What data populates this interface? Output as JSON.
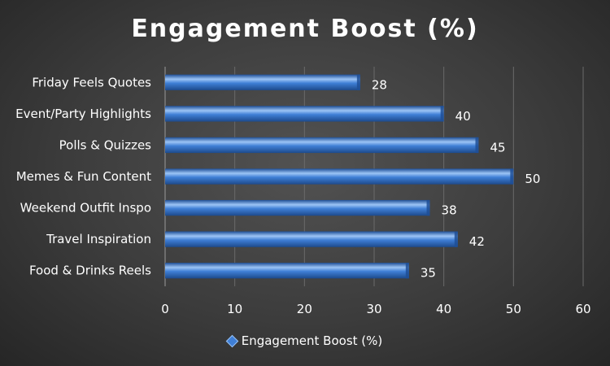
{
  "chart_data": {
    "type": "bar",
    "orientation": "horizontal",
    "title": "Engagement Boost (%)",
    "categories": [
      "Friday Feels Quotes",
      "Event/Party Highlights",
      "Polls & Quizzes",
      "Memes & Fun Content",
      "Weekend Outfit Inspo",
      "Travel Inspiration",
      "Food & Drinks Reels"
    ],
    "series": [
      {
        "name": "Engagement Boost (%)",
        "values": [
          28,
          40,
          45,
          50,
          38,
          42,
          35
        ]
      }
    ],
    "xlim": [
      0,
      60
    ],
    "xticks": [
      0,
      10,
      20,
      30,
      40,
      50,
      60
    ],
    "xlabel": "",
    "ylabel": "",
    "grid": "vertical",
    "legend": "bottom",
    "colors": {
      "bar": "#3f7fd6",
      "bar_light": "#9cc4f5",
      "bar_dark": "#1f4f96",
      "grid": "#6a6a6a"
    }
  }
}
